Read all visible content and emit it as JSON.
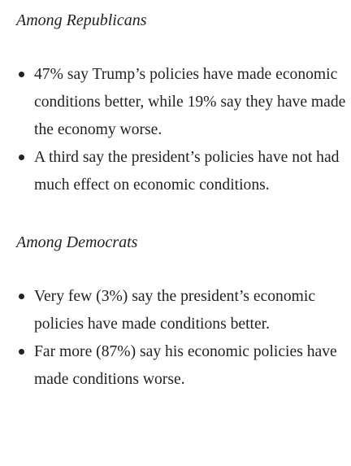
{
  "sections": [
    {
      "heading": "Among Republicans",
      "bullets": [
        "47% say Trump’s policies have made economic conditions better, while 19% say they have made the economy worse.",
        "A third say the president’s policies have not had much effect on economic conditions."
      ]
    },
    {
      "heading": "Among Democrats",
      "bullets": [
        "Very few (3%) say the president’s economic policies have made conditions better.",
        "Far more (87%) say his economic policies have made conditions worse."
      ]
    }
  ]
}
